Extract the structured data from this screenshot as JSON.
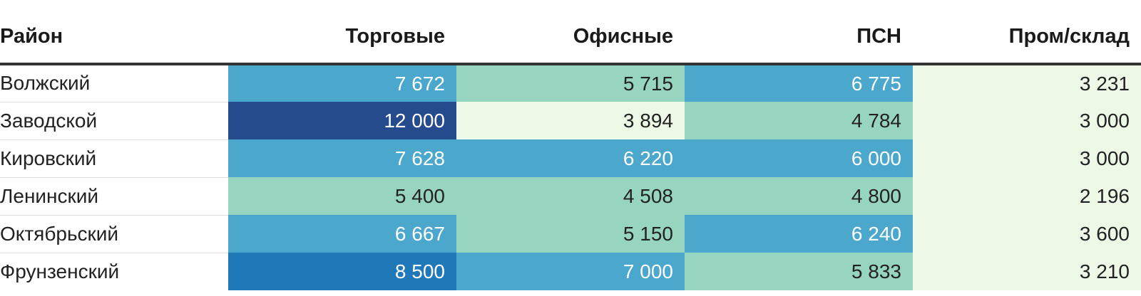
{
  "chart_data": {
    "type": "table",
    "columns": [
      "Район",
      "Торговые",
      "Офисные",
      "ПСН",
      "Пром/склад"
    ],
    "rows": [
      {
        "district": "Волжский",
        "values": [
          "7 672",
          "5 715",
          "6 775",
          "3 231"
        ]
      },
      {
        "district": "Заводской",
        "values": [
          "12 000",
          "3 894",
          "4 784",
          "3 000"
        ]
      },
      {
        "district": "Кировский",
        "values": [
          "7 628",
          "6 220",
          "6 000",
          "3 000"
        ]
      },
      {
        "district": "Ленинский",
        "values": [
          "5 400",
          "4 508",
          "4 800",
          "2 196"
        ]
      },
      {
        "district": "Октябрьский",
        "values": [
          "6 667",
          "5 150",
          "6 240",
          "3 600"
        ]
      },
      {
        "district": "Фрунзенский",
        "values": [
          "8 500",
          "7 000",
          "5 833",
          "3 210"
        ]
      }
    ],
    "color_scale": [
      {
        "max": 4000,
        "color": "#edf8e6",
        "text": "#222222"
      },
      {
        "max": 6000,
        "color": "#98d5c0",
        "text": "#222222"
      },
      {
        "max": 8000,
        "color": "#4ba8cc",
        "text": "#ffffff"
      },
      {
        "max": 10000,
        "color": "#1f78b7",
        "text": "#ffffff"
      },
      {
        "max": 1000000,
        "color": "#254b8c",
        "text": "#ffffff"
      }
    ]
  }
}
